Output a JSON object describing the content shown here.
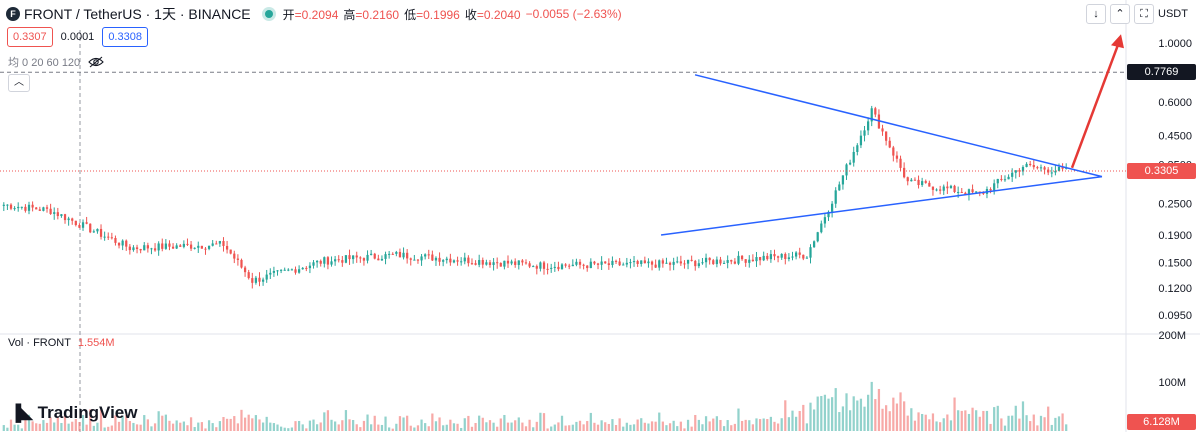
{
  "header": {
    "symbol": "FRONT / TetherUS · 1天 · BINANCE",
    "logo_letter": "F",
    "ohlc": [
      {
        "label": "开",
        "value": "=0.2094"
      },
      {
        "label": "高",
        "value": "=0.2160"
      },
      {
        "label": "低",
        "value": "=0.1996"
      },
      {
        "label": "收",
        "value": "=0.2040"
      }
    ],
    "change": "−0.0055 (−2.63%)"
  },
  "prices": {
    "sell": "0.3307",
    "spread": "0.0001",
    "buy": "0.3308"
  },
  "ma_label": "均 0 20 60 120",
  "collapse_icon": "chevron-up-icon",
  "volume": {
    "label": "Vol · FRONT",
    "value": "1.554M",
    "axis_ticks": [
      "200M",
      "100M"
    ],
    "last_label": "6.128M"
  },
  "toolbar": {
    "currency": "USDT"
  },
  "brand": {
    "name": "TradingView"
  },
  "colors": {
    "up": "#26a69a",
    "down": "#ef5350",
    "pattern": "#2962ff",
    "arrow": "#e53935"
  },
  "chart_data": {
    "type": "candlestick",
    "y_scale": "log",
    "ylim": [
      0.085,
      1.12
    ],
    "y_ticks": [
      "1.0000",
      "0.6000",
      "0.4500",
      "0.3500",
      "0.2500",
      "0.1900",
      "0.1500",
      "0.1200",
      "0.0950"
    ],
    "y_tick_values": [
      1.0,
      0.6,
      0.45,
      0.35,
      0.25,
      0.19,
      0.15,
      0.12,
      0.095
    ],
    "highlighted_levels": [
      {
        "value": "0.7769",
        "style": "dashed-dark"
      },
      {
        "value": "0.3305",
        "style": "dotted-red"
      }
    ],
    "segments": [
      {
        "start": 0.248,
        "end": 0.235,
        "n": 14
      },
      {
        "start": 0.235,
        "end": 0.17,
        "n": 22
      },
      {
        "start": 0.17,
        "end": 0.175,
        "n": 26
      },
      {
        "start": 0.175,
        "end": 0.128,
        "n": 8
      },
      {
        "start": 0.128,
        "end": 0.152,
        "n": 20
      },
      {
        "start": 0.152,
        "end": 0.16,
        "n": 20
      },
      {
        "start": 0.16,
        "end": 0.146,
        "n": 40
      },
      {
        "start": 0.146,
        "end": 0.148,
        "n": 37
      },
      {
        "start": 0.148,
        "end": 0.16,
        "n": 37
      },
      {
        "start": 0.16,
        "end": 0.275,
        "n": 8
      },
      {
        "start": 0.275,
        "end": 0.56,
        "n": 10
      },
      {
        "start": 0.56,
        "end": 0.3,
        "n": 10
      },
      {
        "start": 0.3,
        "end": 0.27,
        "n": 20
      },
      {
        "start": 0.27,
        "end": 0.345,
        "n": 12
      },
      {
        "start": 0.345,
        "end": 0.33,
        "n": 12
      }
    ],
    "triangle": {
      "upper_start": 0.76,
      "lower_start": 0.19,
      "apex": 0.315
    },
    "breakout_arrow": {
      "from": 0.34,
      "to": 1.08
    }
  }
}
